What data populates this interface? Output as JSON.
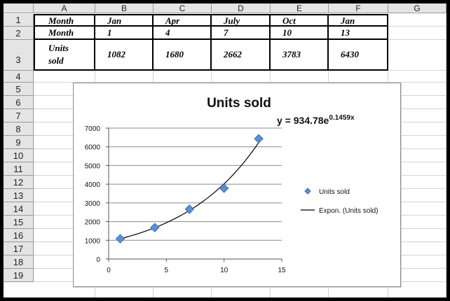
{
  "sheet": {
    "columns": [
      "A",
      "B",
      "C",
      "D",
      "E",
      "F",
      "G"
    ],
    "rows": [
      "1",
      "2",
      "3",
      "4",
      "5",
      "6",
      "7",
      "8",
      "9",
      "10",
      "11",
      "12",
      "13",
      "14",
      "15",
      "16",
      "17",
      "18",
      "19"
    ],
    "table": [
      [
        "Month",
        "Jan",
        "Apr",
        "July",
        "Oct",
        "Jan"
      ],
      [
        "Month",
        "1",
        "4",
        "7",
        "10",
        "13"
      ],
      [
        "Units sold",
        "1082",
        "1680",
        "2662",
        "3783",
        "6430"
      ]
    ]
  },
  "chart_data": {
    "type": "scatter",
    "title": "Units sold",
    "equation_main": "y = 934.78e",
    "equation_exp": "0.1459x",
    "x": [
      1,
      4,
      7,
      10,
      13
    ],
    "y": [
      1082,
      1680,
      2662,
      3783,
      6430
    ],
    "trend": {
      "a": 934.78,
      "b": 0.1459
    },
    "xlim": [
      0,
      15
    ],
    "ylim": [
      0,
      7000
    ],
    "xticks": [
      "0",
      "5",
      "10",
      "15"
    ],
    "yticks": [
      "0",
      "1000",
      "2000",
      "3000",
      "4000",
      "5000",
      "6000",
      "7000"
    ],
    "legend": [
      {
        "label": "Units sold",
        "type": "marker"
      },
      {
        "label": "Expon. (Units sold)",
        "type": "line"
      }
    ],
    "legend_position": "right",
    "grid": "horizontal",
    "marker_color": "#5b8fd6",
    "line_color": "#000000"
  }
}
